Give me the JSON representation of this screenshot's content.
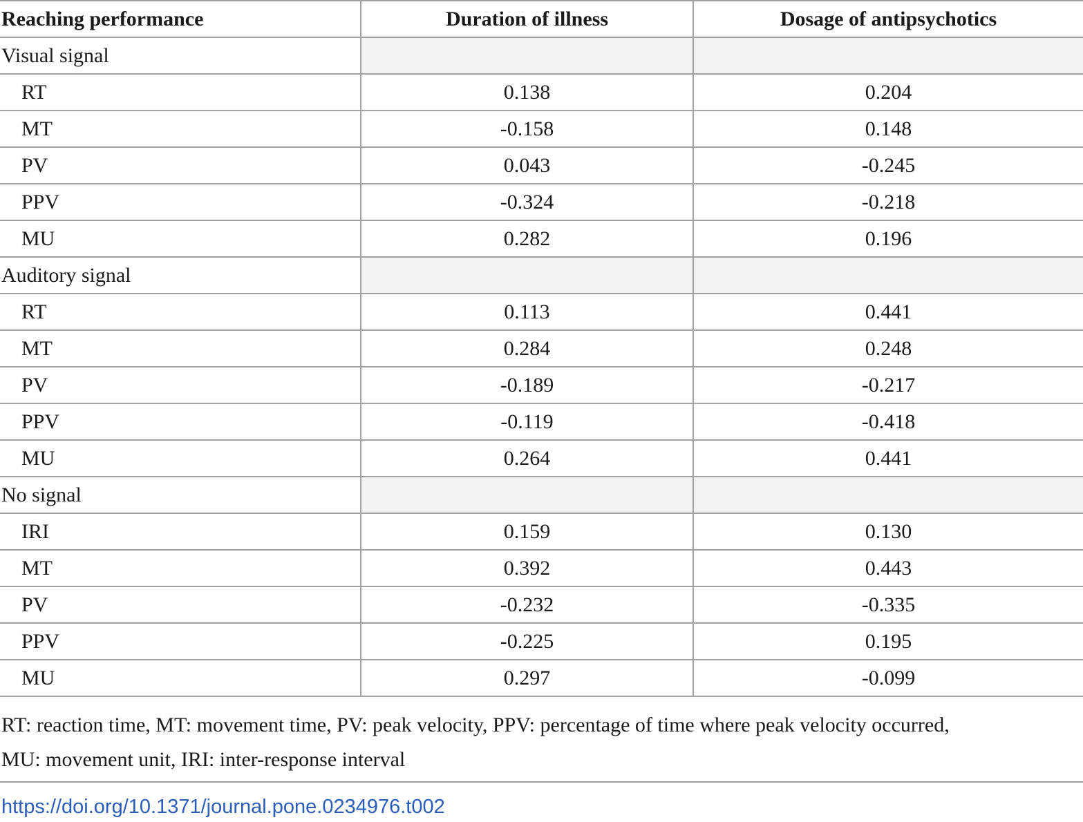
{
  "table": {
    "headers": [
      "Reaching performance",
      "Duration of illness",
      "Dosage of antipsychotics"
    ],
    "groups": [
      {
        "label": "Visual signal",
        "rows": [
          {
            "measure": "RT",
            "duration": "0.138",
            "dosage": "0.204"
          },
          {
            "measure": "MT",
            "duration": "-0.158",
            "dosage": "0.148"
          },
          {
            "measure": "PV",
            "duration": "0.043",
            "dosage": "-0.245"
          },
          {
            "measure": "PPV",
            "duration": "-0.324",
            "dosage": "-0.218"
          },
          {
            "measure": "MU",
            "duration": "0.282",
            "dosage": "0.196"
          }
        ]
      },
      {
        "label": "Auditory signal",
        "rows": [
          {
            "measure": "RT",
            "duration": "0.113",
            "dosage": "0.441"
          },
          {
            "measure": "MT",
            "duration": "0.284",
            "dosage": "0.248"
          },
          {
            "measure": "PV",
            "duration": "-0.189",
            "dosage": "-0.217"
          },
          {
            "measure": "PPV",
            "duration": "-0.119",
            "dosage": "-0.418"
          },
          {
            "measure": "MU",
            "duration": "0.264",
            "dosage": "0.441"
          }
        ]
      },
      {
        "label": "No signal",
        "rows": [
          {
            "measure": "IRI",
            "duration": "0.159",
            "dosage": "0.130"
          },
          {
            "measure": "MT",
            "duration": "0.392",
            "dosage": "0.443"
          },
          {
            "measure": "PV",
            "duration": "-0.232",
            "dosage": "-0.335"
          },
          {
            "measure": "PPV",
            "duration": "-0.225",
            "dosage": "0.195"
          },
          {
            "measure": "MU",
            "duration": "0.297",
            "dosage": "-0.099"
          }
        ]
      }
    ]
  },
  "footnote": {
    "line1": "RT: reaction time, MT: movement time, PV: peak velocity, PPV: percentage of time where peak velocity occurred,",
    "line2": "MU: movement unit, IRI: inter-response interval"
  },
  "doi": "https://doi.org/10.1371/journal.pone.0234976.t002",
  "colors": {
    "rule": "#a0a0a0",
    "group_fill": "#f2f2f2",
    "link": "#2a5cb8"
  }
}
